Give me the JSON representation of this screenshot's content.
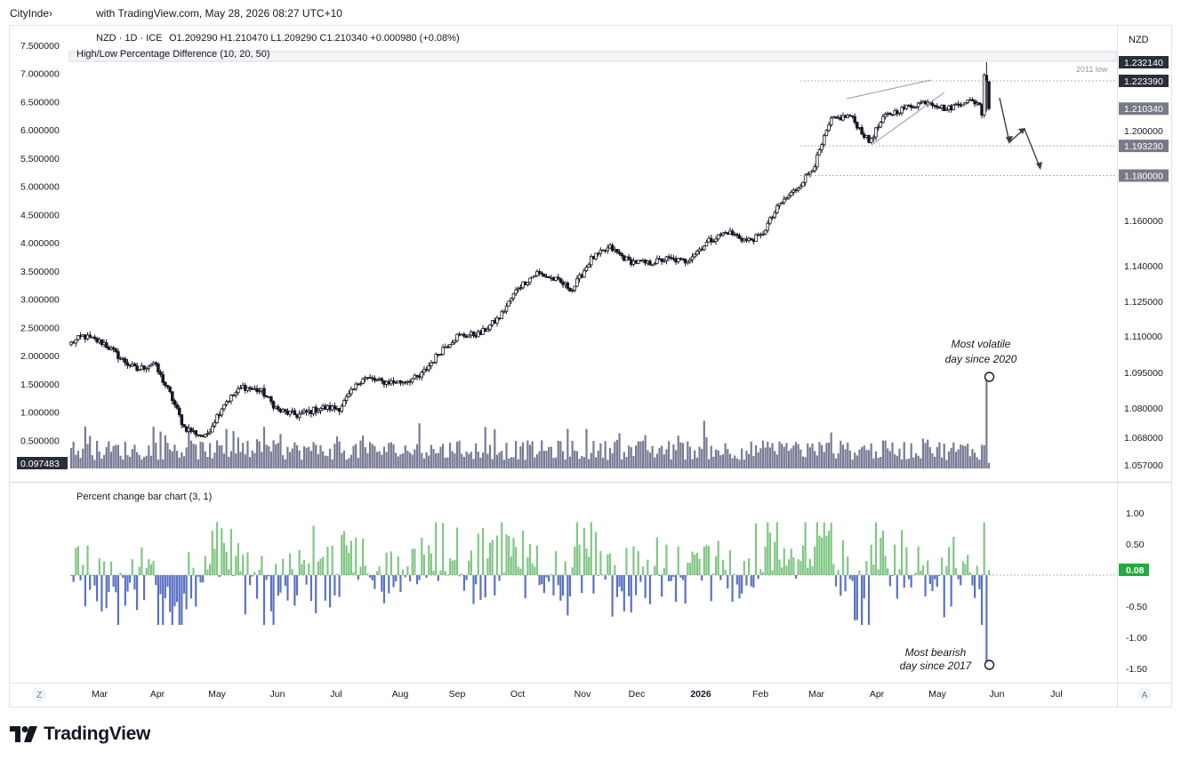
{
  "header": {
    "brand": "CityInde›",
    "published": "with TradingView.com, May 28, 2026 08:27 UTC+10"
  },
  "symbol_info": {
    "line": "NZD · 1D · ICE",
    "ohlc": "O1.209290   H1.210470   L1.209290   C1.210340   +0.000980 (+0.08%)"
  },
  "currency": "NZD",
  "indicators": {
    "hl_label": "High/Low Percentage Difference (10, 20, 50)",
    "pct_label": "Percent change bar chart (3, 1)"
  },
  "annotations": {
    "volatile_1": "Most volatile",
    "volatile_2": "day since 2020",
    "bearish_1": "Most bearish",
    "bearish_2": "day since 2017",
    "low_2011": "2011 low"
  },
  "footer": {
    "brand": "TradingView"
  },
  "axis_buttons": {
    "left": "Z",
    "right": "A"
  },
  "colors": {
    "bull": "#81c784",
    "bear": "#5b72c4",
    "hl_bar": "#787b96",
    "candle": "#131722",
    "green_tag": "#22ab3e",
    "dark_tag": "#2a2e39",
    "grey_tag": "#787b86"
  },
  "chart_data": [
    {
      "type": "candlestick",
      "title": "NZD · 1D · ICE",
      "y_ticks": [
        1.057,
        1.068,
        1.08,
        1.095,
        1.11,
        1.125,
        1.14,
        1.16,
        1.2
      ],
      "y_tick_labels": [
        "1.057000",
        "1.068000",
        "1.080000",
        "1.095000",
        "1.110000",
        "1.125000",
        "1.140000",
        "1.160000",
        "1.200000"
      ],
      "price_tags": [
        {
          "value": 1.23214,
          "label": "1.232140",
          "style": "dark"
        },
        {
          "value": 1.22339,
          "label": "1.223390",
          "style": "dark"
        },
        {
          "value": 1.21034,
          "label": "1.210340",
          "style": "grey"
        },
        {
          "value": 1.19323,
          "label": "1.193230",
          "style": "grey"
        },
        {
          "value": 1.18,
          "label": "1.180000",
          "style": "grey"
        }
      ],
      "x_labels": [
        "Mar",
        "Apr",
        "May",
        "Jun",
        "Jul",
        "Aug",
        "Sep",
        "Oct",
        "Nov",
        "Dec",
        "2026",
        "Feb",
        "Mar",
        "Apr",
        "May",
        "Jun",
        "Jul"
      ],
      "close_waypoints": [
        [
          0,
          1.107
        ],
        [
          5,
          1.11
        ],
        [
          14,
          1.107
        ],
        [
          22,
          1.1
        ],
        [
          28,
          1.096
        ],
        [
          35,
          1.099
        ],
        [
          42,
          1.086
        ],
        [
          48,
          1.072
        ],
        [
          57,
          1.068
        ],
        [
          65,
          1.082
        ],
        [
          73,
          1.089
        ],
        [
          81,
          1.087
        ],
        [
          88,
          1.079
        ],
        [
          96,
          1.077
        ],
        [
          106,
          1.08
        ],
        [
          114,
          1.08
        ],
        [
          124,
          1.093
        ],
        [
          132,
          1.091
        ],
        [
          140,
          1.091
        ],
        [
          148,
          1.093
        ],
        [
          158,
          1.105
        ],
        [
          164,
          1.11
        ],
        [
          174,
          1.111
        ],
        [
          182,
          1.118
        ],
        [
          190,
          1.131
        ],
        [
          198,
          1.137
        ],
        [
          206,
          1.134
        ],
        [
          213,
          1.13
        ],
        [
          221,
          1.143
        ],
        [
          229,
          1.148
        ],
        [
          237,
          1.142
        ],
        [
          245,
          1.141
        ],
        [
          253,
          1.143
        ],
        [
          261,
          1.142
        ],
        [
          271,
          1.151
        ],
        [
          279,
          1.155
        ],
        [
          287,
          1.151
        ],
        [
          293,
          1.153
        ],
        [
          301,
          1.167
        ],
        [
          309,
          1.175
        ],
        [
          316,
          1.185
        ],
        [
          323,
          1.205
        ],
        [
          331,
          1.207
        ],
        [
          339,
          1.195
        ],
        [
          346,
          1.207
        ],
        [
          355,
          1.211
        ],
        [
          364,
          1.214
        ],
        [
          372,
          1.21
        ],
        [
          380,
          1.214
        ],
        [
          386,
          1.213
        ],
        [
          388,
          1.2
        ],
        [
          390,
          1.21
        ]
      ]
    },
    {
      "type": "bar",
      "title": "High/Low Percentage Difference (10, 20, 50)",
      "y_tick_labels": [
        "7.500000",
        "7.000000",
        "6.500000",
        "6.000000",
        "5.500000",
        "5.000000",
        "4.500000",
        "4.000000",
        "3.500000",
        "3.000000",
        "2.500000",
        "2.000000",
        "1.500000",
        "1.000000",
        "0.500000"
      ],
      "ylim": [
        0,
        7.5
      ],
      "last_value": "0.097483",
      "max_point": {
        "index": 389,
        "value": 1.59
      }
    },
    {
      "type": "bar",
      "title": "Percent change bar chart (3, 1)",
      "y_ticks": [
        1.0,
        0.5,
        -0.5,
        -1.0,
        -1.5
      ],
      "y_tick_labels": [
        "1.00",
        "0.50",
        "-0.50",
        "-1.00",
        "-1.50"
      ],
      "ylim": [
        -1.5,
        1.0
      ],
      "last_value": "0.08",
      "min_point": {
        "index": 389,
        "value": -1.45
      }
    }
  ]
}
